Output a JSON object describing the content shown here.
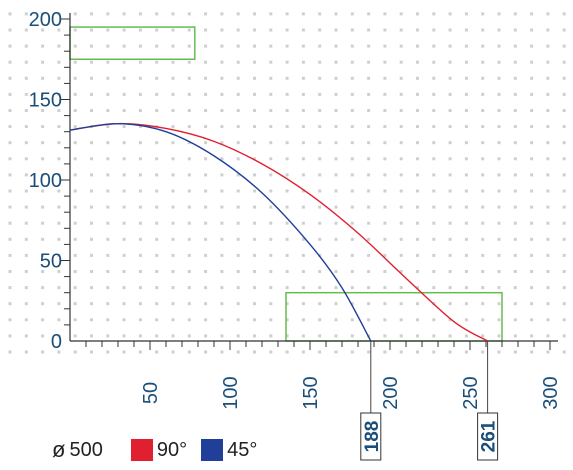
{
  "chart_data": {
    "type": "line",
    "xlim": [
      0,
      300
    ],
    "ylim": [
      0,
      200
    ],
    "x_ticks": [
      50,
      100,
      150,
      200,
      250,
      300
    ],
    "y_ticks": [
      0,
      50,
      100,
      150,
      200
    ],
    "grid": "dotted",
    "series": [
      {
        "name": "90°",
        "color": "#e02030",
        "x": [
          0,
          30,
          60,
          90,
          120,
          150,
          180,
          210,
          240,
          261
        ],
        "y": [
          131,
          135,
          132,
          124,
          110,
          91,
          67,
          39,
          12,
          0
        ]
      },
      {
        "name": "45°",
        "color": "#1f3f99",
        "x": [
          0,
          30,
          60,
          90,
          120,
          150,
          170,
          188
        ],
        "y": [
          131,
          135,
          130,
          115,
          92,
          60,
          33,
          0
        ]
      }
    ],
    "regions": [
      {
        "x0": 0,
        "x1": 78,
        "y0": 175,
        "y1": 195,
        "color": "#66bb55"
      },
      {
        "x0": 135,
        "x1": 270,
        "y0": 0,
        "y1": 30,
        "color": "#66bb55"
      }
    ],
    "markers": [
      {
        "x": 188,
        "label": "188"
      },
      {
        "x": 261,
        "label": "261"
      }
    ]
  },
  "legend": {
    "diameter_symbol": "ø",
    "diameter_value": "500",
    "items": [
      {
        "label": "90°",
        "color": "#e02030"
      },
      {
        "label": "45°",
        "color": "#1f3f99"
      }
    ]
  }
}
